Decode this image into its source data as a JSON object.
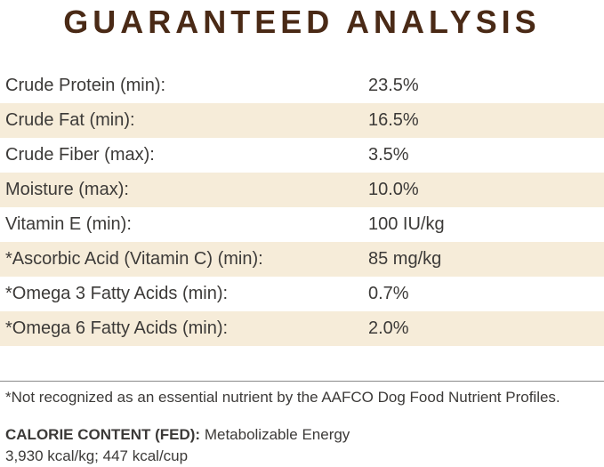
{
  "title": "GUARANTEED ANALYSIS",
  "table": {
    "rows": [
      {
        "label": "Crude Protein (min):",
        "value": "23.5%"
      },
      {
        "label": "Crude Fat (min):",
        "value": "16.5%"
      },
      {
        "label": "Crude Fiber (max):",
        "value": "3.5%"
      },
      {
        "label": "Moisture (max):",
        "value": "10.0%"
      },
      {
        "label": "Vitamin E (min):",
        "value": "100 IU/kg"
      },
      {
        "label": "*Ascorbic Acid (Vitamin C) (min):",
        "value": "85 mg/kg"
      },
      {
        "label": "*Omega 3 Fatty Acids (min):",
        "value": "0.7%"
      },
      {
        "label": "*Omega 6 Fatty Acids (min):",
        "value": "2.0%"
      }
    ]
  },
  "footnote": "*Not recognized as an essential nutrient by the AAFCO Dog Food Nutrient Profiles.",
  "calorie": {
    "heading": "CALORIE CONTENT (FED):",
    "description": "Metabolizable Energy",
    "values": "3,930 kcal/kg; 447 kcal/cup"
  },
  "colors": {
    "title_brown": "#4a2a16",
    "row_shade": "#f6ecd9",
    "body_text": "#3c3a38"
  }
}
